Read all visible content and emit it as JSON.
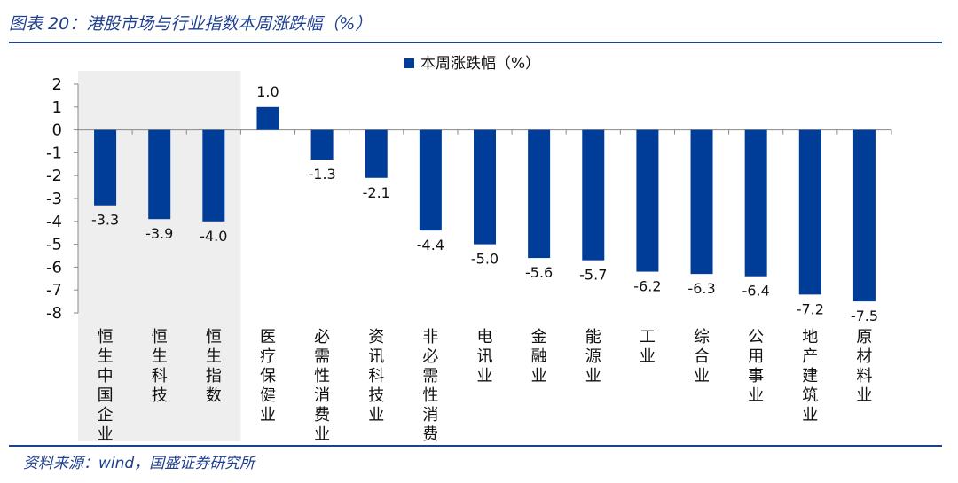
{
  "figure": {
    "title": "图表 20：港股市场与行业指数本周涨跌幅（%）",
    "source": "资料来源：wind，国盛证券研究所"
  },
  "colors": {
    "bar": "#003d99",
    "highlight_bg": "#eeeeee",
    "title": "#1f3f8f"
  },
  "chart_data": {
    "type": "bar",
    "title": "",
    "xlabel": "",
    "ylabel": "",
    "ylim": [
      -8,
      2
    ],
    "yticks": [
      2,
      1,
      0,
      -1,
      -2,
      -3,
      -4,
      -5,
      -6,
      -7,
      -8
    ],
    "legend": "top-center",
    "grid": false,
    "highlighted_categories": [
      "恒生中国企业",
      "恒生科技",
      "恒生指数"
    ],
    "categories": [
      "恒生中国企业",
      "恒生科技",
      "恒生指数",
      "医疗保健业",
      "必需性消费业",
      "资讯科技业",
      "非必需性消费",
      "电讯业",
      "金融业",
      "能源业",
      "工业",
      "综合业",
      "公用事业",
      "地产建筑业",
      "原材料业"
    ],
    "series": [
      {
        "name": "本周涨跌幅（%）",
        "values": [
          -3.3,
          -3.9,
          -4.0,
          1.0,
          -1.3,
          -2.1,
          -4.4,
          -5.0,
          -5.6,
          -5.7,
          -6.2,
          -6.3,
          -6.4,
          -7.2,
          -7.5
        ],
        "labels": [
          "-3.3",
          "-3.9",
          "-4.0",
          "1.0",
          "-1.3",
          "-2.1",
          "-4.4",
          "-5.0",
          "-5.6",
          "-5.7",
          "-6.2",
          "-6.3",
          "-6.4",
          "-7.2",
          "-7.5"
        ]
      }
    ]
  }
}
